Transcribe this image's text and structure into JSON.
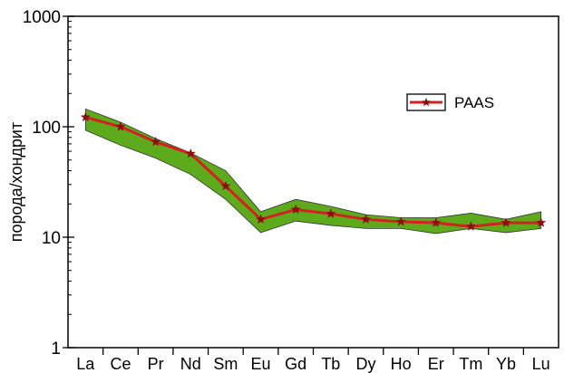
{
  "chart_data": {
    "type": "line",
    "ylabel": "порода/хондрит",
    "xlabel": "",
    "yscale": "log",
    "ylim": [
      1,
      1000
    ],
    "yticks": [
      {
        "value": 1,
        "label": "1"
      },
      {
        "value": 10,
        "label": "10"
      },
      {
        "value": 100,
        "label": "100"
      },
      {
        "value": 1000,
        "label": "1000"
      }
    ],
    "categories": [
      "La",
      "Ce",
      "Pr",
      "Nd",
      "Sm",
      "Eu",
      "Gd",
      "Tb",
      "Dy",
      "Ho",
      "Er",
      "Tm",
      "Yb",
      "Lu"
    ],
    "series": [
      {
        "name": "PAAS",
        "values": [
          122,
          100,
          73,
          57,
          29,
          14.5,
          17.8,
          16.3,
          14.5,
          13.8,
          13.5,
          12.5,
          13.5,
          13.5
        ]
      }
    ],
    "envelope": {
      "upper": [
        145,
        110,
        78,
        58,
        40,
        17,
        22,
        19,
        16,
        15,
        15,
        16.5,
        14.5,
        17
      ],
      "lower": [
        93,
        68,
        52,
        37,
        22,
        11,
        14,
        12.8,
        12,
        12,
        10.8,
        12,
        11,
        12
      ]
    },
    "legend_position": "center-right",
    "grid": false,
    "colors": {
      "line": "#d42020",
      "marker": "#8a1010",
      "band": "#5dab1c",
      "band_edge": "#333333"
    }
  }
}
